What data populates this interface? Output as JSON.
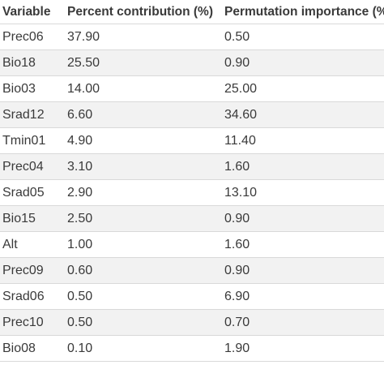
{
  "table": {
    "columns": [
      "Variable",
      "Percent contribution (%)",
      "Permutation importance (%)"
    ],
    "rows": [
      [
        "Prec06",
        "37.90",
        "0.50"
      ],
      [
        "Bio18",
        "25.50",
        "0.90"
      ],
      [
        "Bio03",
        "14.00",
        "25.00"
      ],
      [
        "Srad12",
        "6.60",
        "34.60"
      ],
      [
        "Tmin01",
        "4.90",
        "11.40"
      ],
      [
        "Prec04",
        "3.10",
        "1.60"
      ],
      [
        "Srad05",
        "2.90",
        "13.10"
      ],
      [
        "Bio15",
        "2.50",
        "0.90"
      ],
      [
        "Alt",
        "1.00",
        "1.60"
      ],
      [
        "Prec09",
        "0.60",
        "0.90"
      ],
      [
        "Srad06",
        "0.50",
        "6.90"
      ],
      [
        "Prec10",
        "0.50",
        "0.70"
      ],
      [
        "Bio08",
        "0.10",
        "1.90"
      ]
    ]
  }
}
